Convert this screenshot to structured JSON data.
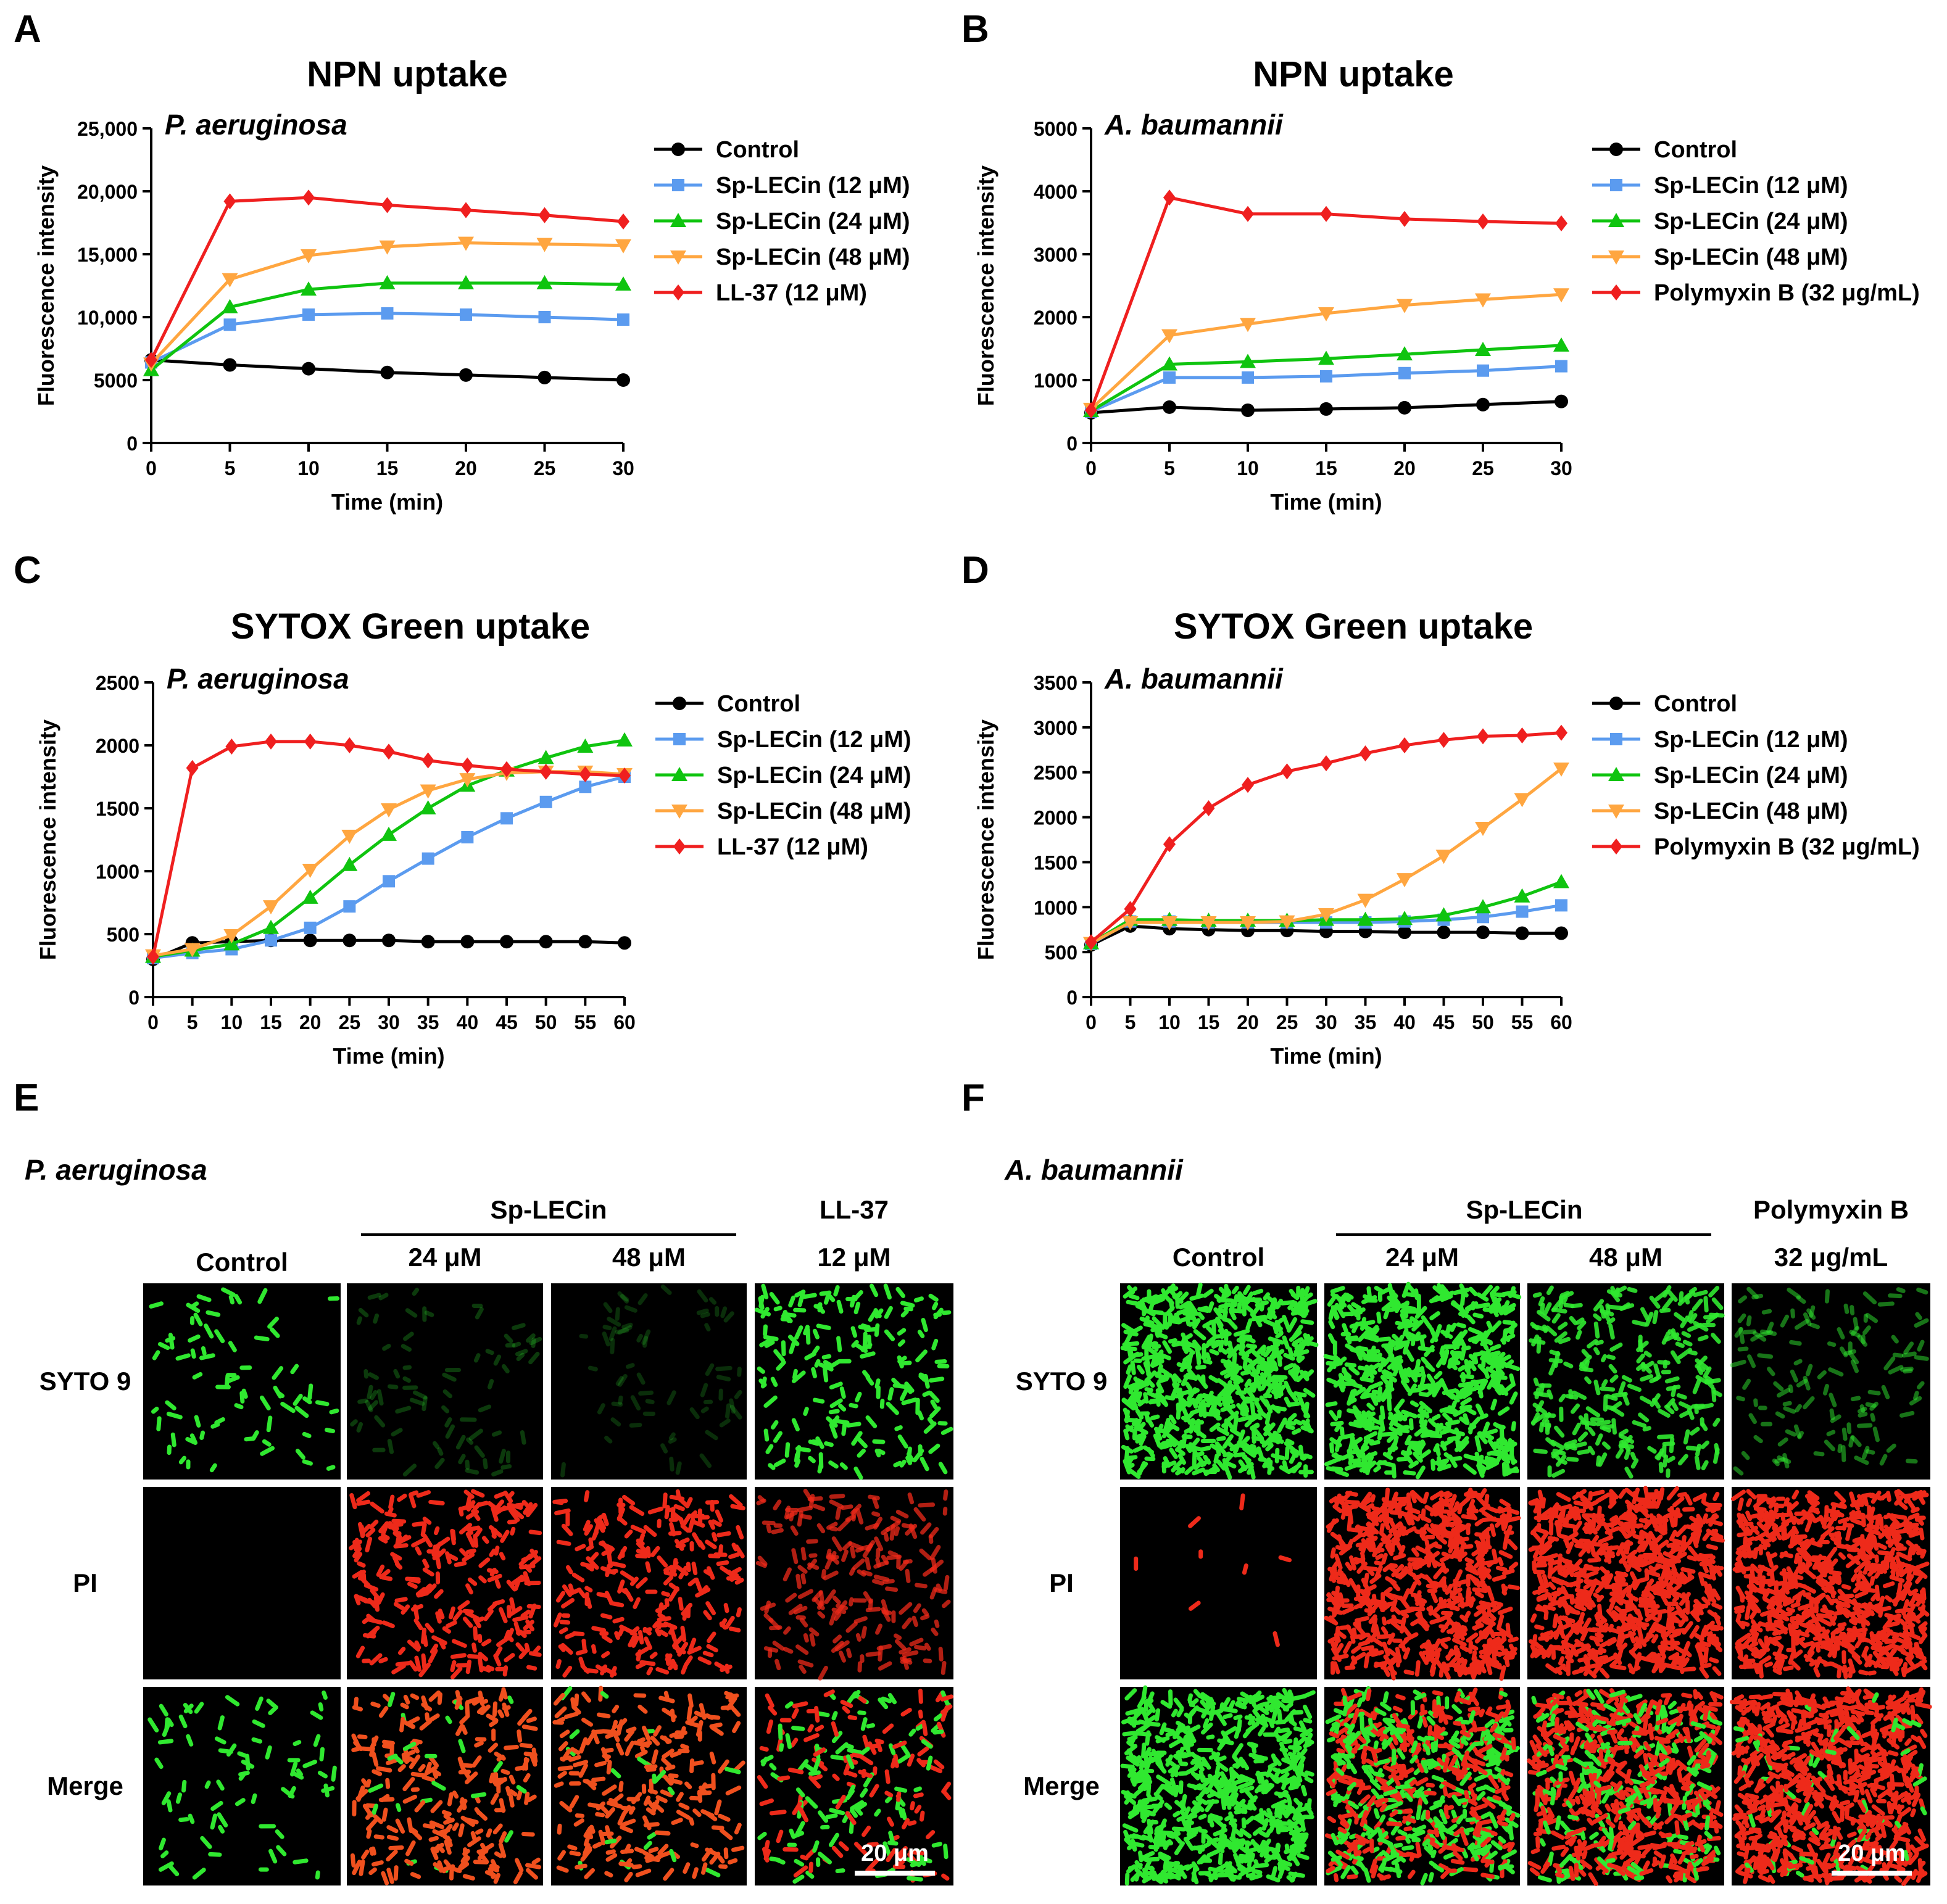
{
  "panel_letters": [
    "A",
    "B",
    "C",
    "D",
    "E",
    "F"
  ],
  "chart_data": [
    {
      "panel": "A",
      "type": "line",
      "title": "NPN uptake",
      "organism": "P. aeruginosa",
      "xlabel": "Time (min)",
      "ylabel": "Fluorescence intensity",
      "xlim": [
        0,
        30
      ],
      "ylim": [
        0,
        25000
      ],
      "xticks": [
        0,
        5,
        10,
        15,
        20,
        25,
        30
      ],
      "yticks": [
        0,
        5000,
        10000,
        15000,
        20000,
        25000
      ],
      "ytick_labels": [
        "0",
        "5000",
        "10,000",
        "15,000",
        "20,000",
        "25,000"
      ],
      "grid": false,
      "legend": "right",
      "x": [
        0,
        5,
        10,
        15,
        20,
        25,
        30
      ],
      "series": [
        {
          "name": "Control",
          "color": "#000000",
          "marker": "circle",
          "values": [
            6600,
            6200,
            5900,
            5600,
            5400,
            5200,
            5000
          ]
        },
        {
          "name": "Sp-LECin (12 μM)",
          "color": "#5b9bef",
          "marker": "square",
          "values": [
            6400,
            9400,
            10200,
            10300,
            10200,
            10000,
            9800
          ]
        },
        {
          "name": "Sp-LECin (24 μM)",
          "color": "#0fc40f",
          "marker": "triangle-up",
          "values": [
            5800,
            10800,
            12200,
            12700,
            12700,
            12700,
            12600
          ]
        },
        {
          "name": "Sp-LECin (48 μM)",
          "color": "#ffa640",
          "marker": "triangle-down",
          "values": [
            6300,
            13000,
            14900,
            15600,
            15900,
            15800,
            15700
          ]
        },
        {
          "name": "LL-37 (12 μM)",
          "color": "#ef1f1f",
          "marker": "diamond",
          "values": [
            6600,
            19200,
            19500,
            18900,
            18500,
            18100,
            17600
          ]
        }
      ]
    },
    {
      "panel": "B",
      "type": "line",
      "title": "NPN uptake",
      "organism": "A. baumannii",
      "xlabel": "Time (min)",
      "ylabel": "Fluorescence intensity",
      "xlim": [
        0,
        30
      ],
      "ylim": [
        0,
        5000
      ],
      "xticks": [
        0,
        5,
        10,
        15,
        20,
        25,
        30
      ],
      "yticks": [
        0,
        1000,
        2000,
        3000,
        4000,
        5000
      ],
      "ytick_labels": [
        "0",
        "1000",
        "2000",
        "3000",
        "4000",
        "5000"
      ],
      "grid": false,
      "legend": "right",
      "x": [
        0,
        5,
        10,
        15,
        20,
        25,
        30
      ],
      "series": [
        {
          "name": "Control",
          "color": "#000000",
          "marker": "circle",
          "values": [
            480,
            570,
            520,
            540,
            560,
            610,
            660
          ]
        },
        {
          "name": "Sp-LECin (12 μM)",
          "color": "#5b9bef",
          "marker": "square",
          "values": [
            500,
            1040,
            1040,
            1060,
            1110,
            1150,
            1220
          ]
        },
        {
          "name": "Sp-LECin (24 μM)",
          "color": "#0fc40f",
          "marker": "triangle-up",
          "values": [
            510,
            1250,
            1290,
            1340,
            1410,
            1480,
            1550
          ]
        },
        {
          "name": "Sp-LECin (48 μM)",
          "color": "#ffa640",
          "marker": "triangle-down",
          "values": [
            540,
            1710,
            1890,
            2060,
            2190,
            2280,
            2360
          ]
        },
        {
          "name": "Polymyxin B (32 μg/mL)",
          "color": "#ef1f1f",
          "marker": "diamond",
          "values": [
            520,
            3900,
            3640,
            3640,
            3560,
            3520,
            3490
          ]
        }
      ]
    },
    {
      "panel": "C",
      "type": "line",
      "title": "SYTOX Green uptake",
      "organism": "P. aeruginosa",
      "xlabel": "Time (min)",
      "ylabel": "Fluorescence intensity",
      "xlim": [
        0,
        60
      ],
      "ylim": [
        0,
        2500
      ],
      "xticks": [
        0,
        5,
        10,
        15,
        20,
        25,
        30,
        35,
        40,
        45,
        50,
        55,
        60
      ],
      "yticks": [
        0,
        500,
        1000,
        1500,
        2000,
        2500
      ],
      "ytick_labels": [
        "0",
        "500",
        "1000",
        "1500",
        "2000",
        "2500"
      ],
      "grid": false,
      "legend": "right",
      "x": [
        0,
        5,
        10,
        15,
        20,
        25,
        30,
        35,
        40,
        45,
        50,
        55,
        60
      ],
      "series": [
        {
          "name": "Control",
          "color": "#000000",
          "marker": "circle",
          "values": [
            300,
            430,
            440,
            450,
            450,
            450,
            450,
            440,
            440,
            440,
            440,
            440,
            430
          ]
        },
        {
          "name": "Sp-LECin (12 μM)",
          "color": "#5b9bef",
          "marker": "square",
          "values": [
            310,
            350,
            380,
            450,
            550,
            720,
            920,
            1100,
            1270,
            1420,
            1550,
            1670,
            1750
          ]
        },
        {
          "name": "Sp-LECin (24 μM)",
          "color": "#0fc40f",
          "marker": "triangle-up",
          "values": [
            320,
            370,
            420,
            550,
            790,
            1050,
            1290,
            1500,
            1680,
            1800,
            1900,
            1990,
            2040
          ]
        },
        {
          "name": "Sp-LECin (48 μM)",
          "color": "#ffa640",
          "marker": "triangle-down",
          "values": [
            330,
            380,
            490,
            720,
            1010,
            1280,
            1490,
            1640,
            1730,
            1780,
            1790,
            1790,
            1770
          ]
        },
        {
          "name": "LL-37 (12 μM)",
          "color": "#ef1f1f",
          "marker": "diamond",
          "values": [
            320,
            1820,
            1990,
            2030,
            2030,
            2000,
            1950,
            1880,
            1840,
            1810,
            1790,
            1770,
            1760
          ]
        }
      ]
    },
    {
      "panel": "D",
      "type": "line",
      "title": "SYTOX Green uptake",
      "organism": "A. baumannii",
      "xlabel": "Time (min)",
      "ylabel": "Fluorescence intensity",
      "xlim": [
        0,
        60
      ],
      "ylim": [
        0,
        3500
      ],
      "xticks": [
        0,
        5,
        10,
        15,
        20,
        25,
        30,
        35,
        40,
        45,
        50,
        55,
        60
      ],
      "yticks": [
        0,
        500,
        1000,
        1500,
        2000,
        2500,
        3000,
        3500
      ],
      "ytick_labels": [
        "0",
        "500",
        "1000",
        "1500",
        "2000",
        "2500",
        "3000",
        "3500"
      ],
      "grid": false,
      "legend": "right",
      "x": [
        0,
        5,
        10,
        15,
        20,
        25,
        30,
        35,
        40,
        45,
        50,
        55,
        60
      ],
      "series": [
        {
          "name": "Control",
          "color": "#000000",
          "marker": "circle",
          "values": [
            580,
            790,
            760,
            750,
            740,
            740,
            730,
            730,
            720,
            720,
            720,
            710,
            710
          ]
        },
        {
          "name": "Sp-LECin (12 μM)",
          "color": "#5b9bef",
          "marker": "square",
          "values": [
            590,
            840,
            840,
            830,
            830,
            830,
            830,
            830,
            840,
            860,
            890,
            950,
            1020
          ]
        },
        {
          "name": "Sp-LECin (24 μM)",
          "color": "#0fc40f",
          "marker": "triangle-up",
          "values": [
            600,
            860,
            860,
            850,
            850,
            850,
            860,
            860,
            870,
            910,
            1000,
            1120,
            1280
          ]
        },
        {
          "name": "Sp-LECin (48 μM)",
          "color": "#ffa640",
          "marker": "triangle-down",
          "values": [
            600,
            830,
            830,
            830,
            830,
            840,
            920,
            1080,
            1310,
            1570,
            1880,
            2200,
            2540
          ]
        },
        {
          "name": "Polymyxin B (32 μg/mL)",
          "color": "#ef1f1f",
          "marker": "diamond",
          "values": [
            610,
            980,
            1700,
            2100,
            2360,
            2510,
            2600,
            2710,
            2800,
            2860,
            2900,
            2910,
            2940
          ]
        }
      ]
    }
  ],
  "microscopy": [
    {
      "panel": "E",
      "organism": "P. aeruginosa",
      "group_label": "Sp-LECin",
      "columns": [
        {
          "label": "Control",
          "sub": ""
        },
        {
          "label": "24 μM",
          "sub": ""
        },
        {
          "label": "48 μM",
          "sub": ""
        },
        {
          "label": "LL-37",
          "sub": "12 μM"
        }
      ],
      "rows": [
        "SYTO 9",
        "PI",
        "Merge"
      ],
      "scale_bar": "20 μm",
      "density": [
        [
          0.28,
          0.3,
          0.25,
          0.7
        ],
        [
          0,
          0.95,
          0.9,
          0.75
        ],
        [
          0.28,
          0.95,
          0.9,
          0.85
        ]
      ],
      "brightness": [
        [
          1,
          0.25,
          0.2,
          1
        ],
        [
          0,
          1,
          1,
          0.75
        ],
        [
          1,
          1,
          1,
          1
        ]
      ]
    },
    {
      "panel": "F",
      "organism": "A. baumannii",
      "group_label": "Sp-LECin",
      "columns": [
        {
          "label": "Control",
          "sub": ""
        },
        {
          "label": "24 μM",
          "sub": ""
        },
        {
          "label": "48 μM",
          "sub": ""
        },
        {
          "label": "Polymyxin B",
          "sub": "32 μg/mL"
        }
      ],
      "rows": [
        "SYTO 9",
        "PI",
        "Merge"
      ],
      "scale_bar": "20 μm",
      "density": [
        [
          2.4,
          2.2,
          1.0,
          0.5
        ],
        [
          0.03,
          2.3,
          2.6,
          2.7
        ],
        [
          2.4,
          2.4,
          2.6,
          2.7
        ]
      ],
      "brightness": [
        [
          1,
          1,
          0.9,
          0.5
        ],
        [
          1,
          1,
          1,
          1
        ],
        [
          1,
          1,
          1,
          1
        ]
      ]
    }
  ]
}
